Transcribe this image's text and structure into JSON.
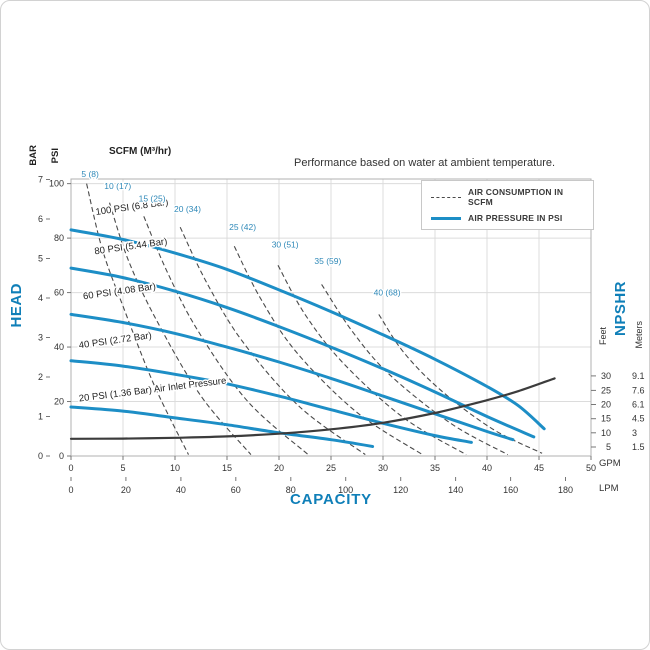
{
  "title": "Performance based on water at ambient temperature.",
  "legend": {
    "items": [
      {
        "label": "AIR CONSUMPTION IN SCFM",
        "style": "dashed",
        "color": "#4a4a4a"
      },
      {
        "label": "AIR PRESSURE IN PSI",
        "style": "solid",
        "color": "#1d8ec6"
      }
    ]
  },
  "chart_data": {
    "type": "line",
    "title": "Performance based on water at ambient temperature.",
    "consumption_header": "SCFM (M³/hr)",
    "x_axis": {
      "label": "CAPACITY",
      "gpm_unit": "GPM",
      "lpm_unit": "LPM",
      "gpm_ticks": [
        0,
        5,
        10,
        15,
        20,
        25,
        30,
        35,
        40,
        45,
        50
      ],
      "lpm_ticks": [
        0,
        20,
        40,
        60,
        80,
        100,
        120,
        140,
        160,
        180
      ],
      "xlim_gpm": [
        0,
        50
      ]
    },
    "y_axis": {
      "label": "HEAD",
      "psi_unit": "PSI",
      "bar_unit": "BAR",
      "psi_ticks": [
        0,
        20,
        40,
        60,
        80,
        100
      ],
      "bar_ticks": [
        0,
        1,
        2,
        3,
        4,
        5,
        6,
        7
      ],
      "ylim_psi": [
        0,
        101.7
      ]
    },
    "npshr_axis": {
      "label": "NPSHR",
      "feet_unit": "Feet",
      "meters_unit": "Meters",
      "feet_ticks": [
        30,
        25,
        20,
        15,
        10,
        5
      ],
      "meters_ticks": [
        "9.1",
        "7.6",
        "6.1",
        "4.5",
        "3",
        "1.5"
      ],
      "psi_positions": [
        29.4,
        24.1,
        18.9,
        13.7,
        8.5,
        3.3
      ]
    },
    "pressure_curves": [
      {
        "label": "100 PSI (6.8 Bar)",
        "label_pos": [
          2.4,
          88.5
        ],
        "label_rotation": -8,
        "points": [
          [
            0,
            83
          ],
          [
            5,
            79.5
          ],
          [
            10,
            74.5
          ],
          [
            15,
            68.5
          ],
          [
            20,
            61
          ],
          [
            25,
            53
          ],
          [
            30,
            44.5
          ],
          [
            35,
            35.5
          ],
          [
            40,
            25.5
          ],
          [
            43,
            18.5
          ],
          [
            45.5,
            10
          ]
        ]
      },
      {
        "label": "80 PSI (5.44 Bar)",
        "label_pos": [
          2.3,
          74
        ],
        "label_rotation": -8,
        "points": [
          [
            0,
            69
          ],
          [
            5,
            65.5
          ],
          [
            10,
            60.5
          ],
          [
            15,
            54.5
          ],
          [
            20,
            47.5
          ],
          [
            25,
            40
          ],
          [
            30,
            32
          ],
          [
            35,
            23.5
          ],
          [
            40,
            14.5
          ],
          [
            44.5,
            7
          ]
        ]
      },
      {
        "label": "60 PSI (4.08 Bar)",
        "label_pos": [
          1.2,
          57.5
        ],
        "label_rotation": -8,
        "points": [
          [
            0,
            52
          ],
          [
            5,
            49
          ],
          [
            10,
            45
          ],
          [
            15,
            40
          ],
          [
            20,
            34.5
          ],
          [
            25,
            28.5
          ],
          [
            30,
            22
          ],
          [
            35,
            15.5
          ],
          [
            40,
            9
          ],
          [
            42.5,
            6
          ]
        ]
      },
      {
        "label": "40 PSI (2.72 Bar)",
        "label_pos": [
          0.8,
          39.5
        ],
        "label_rotation": -8,
        "points": [
          [
            0,
            35
          ],
          [
            5,
            33
          ],
          [
            10,
            30
          ],
          [
            15,
            26.5
          ],
          [
            20,
            22
          ],
          [
            25,
            17
          ],
          [
            30,
            12
          ],
          [
            35,
            7.5
          ],
          [
            38.5,
            5
          ]
        ]
      },
      {
        "label": "20 PSI (1.36 Bar) Air Inlet Pressure",
        "label_pos": [
          0.8,
          20
        ],
        "label_rotation": -7,
        "points": [
          [
            0,
            18
          ],
          [
            5,
            16.5
          ],
          [
            10,
            14
          ],
          [
            15,
            11.5
          ],
          [
            20,
            8.5
          ],
          [
            25,
            6
          ],
          [
            29,
            3.5
          ]
        ]
      }
    ],
    "consumption_curves": [
      {
        "label": "5 (8)",
        "label_pos": [
          1.0,
          102.5
        ],
        "points": [
          [
            1.5,
            100
          ],
          [
            3,
            76
          ],
          [
            5,
            55
          ],
          [
            8,
            26
          ],
          [
            11.3,
            0.5
          ]
        ]
      },
      {
        "label": "10 (17)",
        "label_pos": [
          3.2,
          98
        ],
        "points": [
          [
            3.7,
            93
          ],
          [
            5.5,
            72
          ],
          [
            8.2,
            50
          ],
          [
            12.5,
            22
          ],
          [
            17.3,
            0.5
          ]
        ]
      },
      {
        "label": "15 (25)",
        "label_pos": [
          6.5,
          93.5
        ],
        "points": [
          [
            7,
            88
          ],
          [
            9.2,
            68
          ],
          [
            12.2,
            46
          ],
          [
            17,
            20
          ],
          [
            22.8,
            0.5
          ]
        ]
      },
      {
        "label": "20 (34)",
        "label_pos": [
          9.9,
          89.5
        ],
        "points": [
          [
            10.5,
            84
          ],
          [
            13,
            64
          ],
          [
            16.5,
            42
          ],
          [
            22,
            18
          ],
          [
            28.3,
            0.5
          ]
        ]
      },
      {
        "label": "25 (42)",
        "label_pos": [
          15.2,
          83
        ],
        "points": [
          [
            15.7,
            77
          ],
          [
            18.2,
            58
          ],
          [
            21.7,
            38
          ],
          [
            27.5,
            16
          ],
          [
            33.8,
            0.5
          ]
        ]
      },
      {
        "label": "30 (51)",
        "label_pos": [
          19.3,
          76.5
        ],
        "points": [
          [
            19.9,
            70
          ],
          [
            22.5,
            52
          ],
          [
            26.2,
            34
          ],
          [
            32,
            14
          ],
          [
            38,
            0.5
          ]
        ]
      },
      {
        "label": "35 (59)",
        "label_pos": [
          23.4,
          70.5
        ],
        "points": [
          [
            24.1,
            63
          ],
          [
            27,
            46
          ],
          [
            30.6,
            30
          ],
          [
            36.5,
            12
          ],
          [
            42,
            0.5
          ]
        ]
      },
      {
        "label": "40 (68)",
        "label_pos": [
          29.1,
          59
        ],
        "points": [
          [
            29.6,
            52
          ],
          [
            32,
            38
          ],
          [
            35.6,
            24
          ],
          [
            40.5,
            10
          ],
          [
            45.3,
            1
          ]
        ]
      }
    ],
    "npshr_curve": {
      "points": [
        [
          0,
          6.3
        ],
        [
          5,
          6.4
        ],
        [
          10,
          6.7
        ],
        [
          15,
          7.2
        ],
        [
          20,
          8.2
        ],
        [
          25,
          9.8
        ],
        [
          30,
          12.2
        ],
        [
          35,
          15.8
        ],
        [
          40,
          20.5
        ],
        [
          43,
          23.8
        ],
        [
          46.5,
          28.5
        ]
      ]
    },
    "styles": {
      "pressure_color": "#1d8ec6",
      "consumption_color": "#4a4a4a",
      "npshr_color": "#3c3c3c",
      "accent_text_color": "#0f7fb8",
      "scfm_label_color": "#2f89b8",
      "grid_color": "#dcdcdc"
    }
  }
}
